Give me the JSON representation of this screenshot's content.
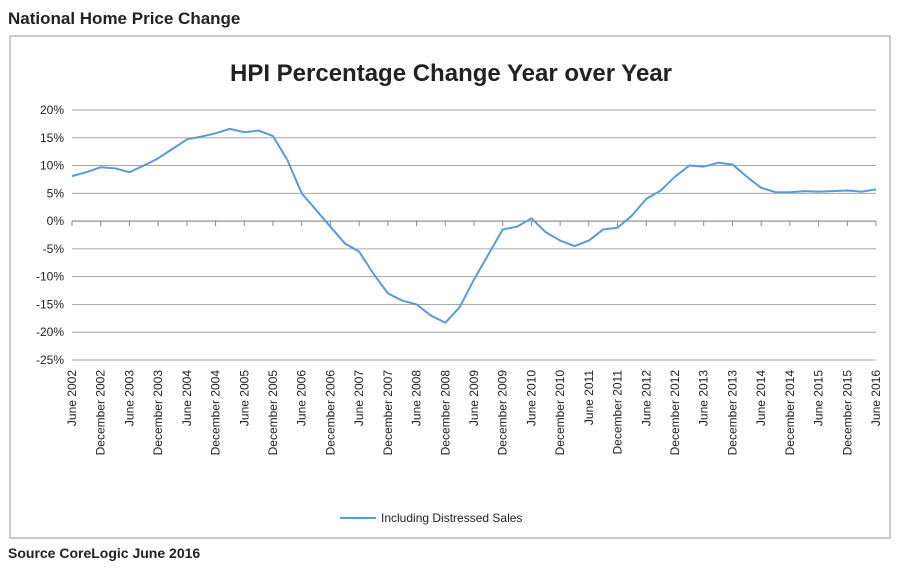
{
  "header": {
    "title": "National Home Price Change"
  },
  "footer": {
    "source": "Source CoreLogic June 2016"
  },
  "chart_data": {
    "type": "line",
    "title": "HPI Percentage Change Year over Year",
    "categories": [
      "June 2002",
      null,
      "December 2002",
      null,
      "June 2003",
      null,
      "December 2003",
      null,
      "June 2004",
      null,
      "December 2004",
      null,
      "June 2005",
      null,
      "December 2005",
      null,
      "June 2006",
      null,
      "December 2006",
      null,
      "June 2007",
      null,
      "December 2007",
      null,
      "June 2008",
      null,
      "December 2008",
      null,
      "June 2009",
      null,
      "December 2009",
      null,
      "June 2010",
      null,
      "December 2010",
      null,
      "June 2011",
      null,
      "December 2011",
      null,
      "June 2012",
      null,
      "December 2012",
      null,
      "June 2013",
      null,
      "December 2013",
      null,
      "June 2014",
      null,
      "December 2014",
      null,
      "June 2015",
      null,
      "December 2015",
      null,
      "June 2016"
    ],
    "series": [
      {
        "name": "Including Distressed Sales",
        "color": "#5b9bd5",
        "values": [
          8.1,
          8.8,
          9.7,
          9.5,
          8.8,
          10.0,
          11.3,
          13.0,
          14.7,
          15.2,
          15.8,
          16.6,
          16.0,
          16.3,
          15.3,
          11.0,
          5.0,
          2.0,
          -1.0,
          -4.0,
          -5.5,
          -9.5,
          -13.0,
          -14.3,
          -15.0,
          -17.0,
          -18.3,
          -15.5,
          -10.5,
          -6.0,
          -1.5,
          -1.0,
          0.5,
          -2.0,
          -3.5,
          -4.5,
          -3.5,
          -1.5,
          -1.2,
          1.0,
          4.0,
          5.5,
          8.0,
          10.0,
          9.8,
          10.5,
          10.2,
          8.0,
          6.0,
          5.2,
          5.2,
          5.4,
          5.3,
          5.4,
          5.5,
          5.3,
          5.7
        ]
      }
    ],
    "ylim": [
      -25,
      20
    ],
    "yticks": [
      {
        "value": -25,
        "label": "-25%"
      },
      {
        "value": -20,
        "label": "-20%"
      },
      {
        "value": -15,
        "label": "-15%"
      },
      {
        "value": -10,
        "label": "-10%"
      },
      {
        "value": -5,
        "label": "-5%"
      },
      {
        "value": 0,
        "label": "0%"
      },
      {
        "value": 5,
        "label": "5%"
      },
      {
        "value": 10,
        "label": "10%"
      },
      {
        "value": 15,
        "label": "15%"
      },
      {
        "value": 20,
        "label": "20%"
      }
    ],
    "grid": true,
    "legend": "bottom"
  }
}
